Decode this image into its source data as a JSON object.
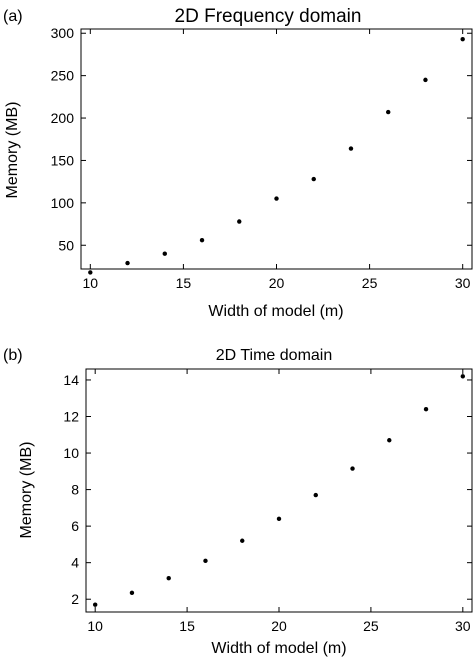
{
  "chart_data": [
    {
      "type": "scatter",
      "panel_label": "(a)",
      "title": "2D Frequency domain",
      "xlabel": "Width of model (m)",
      "ylabel": "Memory (MB)",
      "xlim": [
        9.5,
        30.5
      ],
      "ylim": [
        22,
        305
      ],
      "xticks": [
        10,
        15,
        20,
        25,
        30
      ],
      "yticks": [
        50,
        100,
        150,
        200,
        250,
        300
      ],
      "grid": false,
      "series": [
        {
          "x": [
            10,
            12,
            14,
            16,
            18,
            20,
            22,
            24,
            26,
            28,
            30
          ],
          "y": [
            18,
            29,
            40,
            56,
            78,
            105,
            128,
            164,
            207,
            245,
            293
          ]
        }
      ]
    },
    {
      "type": "scatter",
      "panel_label": "(b)",
      "title": "2D Time domain",
      "xlabel": "Width of model (m)",
      "ylabel": "Memory (MB)",
      "xlim": [
        9.5,
        30.5
      ],
      "ylim": [
        1.3,
        14.6
      ],
      "xticks": [
        10,
        15,
        20,
        25,
        30
      ],
      "yticks": [
        2,
        4,
        6,
        8,
        10,
        12,
        14
      ],
      "grid": false,
      "series": [
        {
          "x": [
            10,
            12,
            14,
            16,
            18,
            20,
            22,
            24,
            26,
            28,
            30
          ],
          "y": [
            1.7,
            2.35,
            3.15,
            4.1,
            5.2,
            6.4,
            7.7,
            9.15,
            10.7,
            12.4,
            14.2
          ]
        }
      ]
    }
  ]
}
